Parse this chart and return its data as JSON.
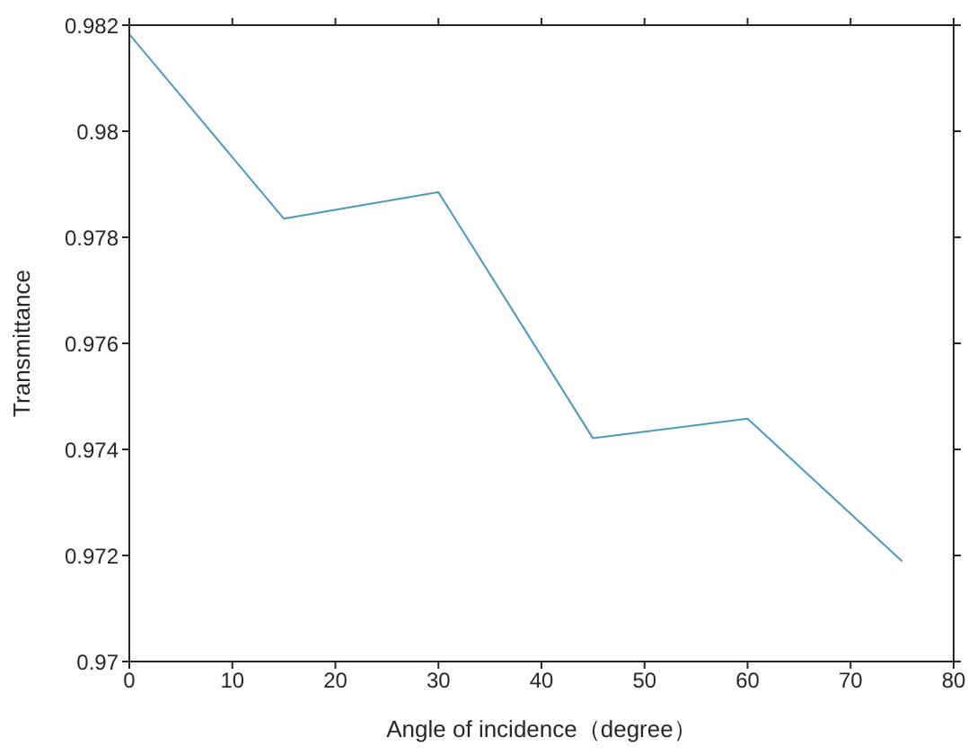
{
  "chart_data": {
    "type": "line",
    "xlabel": "Angle of incidence（degree）",
    "ylabel": "Transmittance",
    "x": [
      0,
      15,
      30,
      45,
      60,
      75
    ],
    "series": [
      {
        "color": "#4a9ac0",
        "values": [
          0.98183,
          0.97835,
          0.97885,
          0.97421,
          0.97458,
          0.97189
        ]
      }
    ],
    "xlim": [
      0,
      80
    ],
    "xticks": [
      0,
      10,
      20,
      30,
      40,
      50,
      60,
      70,
      80
    ],
    "ylim": [
      0.97,
      0.982
    ],
    "yticks": [
      0.97,
      0.972,
      0.974,
      0.976,
      0.978,
      0.98,
      0.982
    ],
    "grid": false,
    "legend": false,
    "marker": "none",
    "line_style": "solid"
  }
}
